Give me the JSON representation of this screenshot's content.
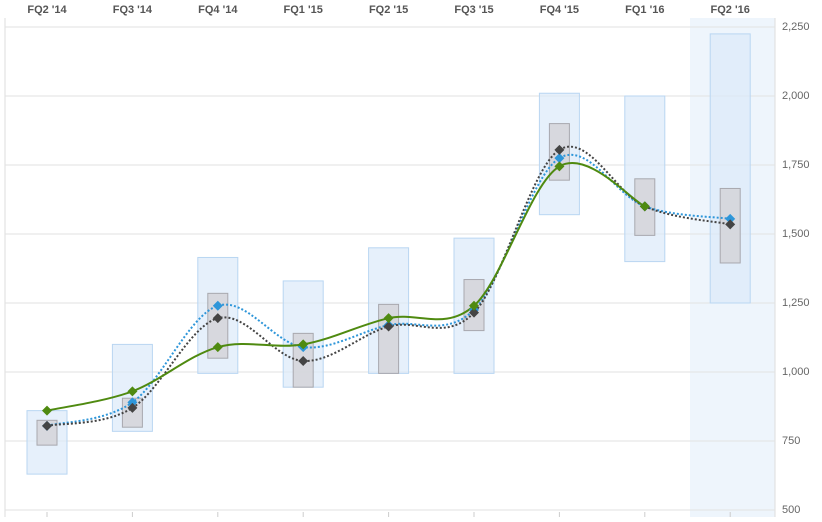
{
  "chart_data": {
    "type": "estimate-range",
    "categories": [
      "FQ2 '14",
      "FQ3 '14",
      "FQ4 '14",
      "FQ1 '15",
      "FQ2 '15",
      "FQ3 '15",
      "FQ4 '15",
      "FQ1 '16",
      "FQ2 '16"
    ],
    "range_low": [
      630,
      785,
      995,
      945,
      995,
      995,
      1570,
      1400,
      1250
    ],
    "range_high": [
      860,
      1100,
      1415,
      1330,
      1450,
      1485,
      2010,
      2000,
      2225
    ],
    "inner_low": [
      735,
      800,
      1050,
      945,
      995,
      1150,
      1695,
      1495,
      1395
    ],
    "inner_high": [
      825,
      905,
      1285,
      1140,
      1245,
      1335,
      1900,
      1700,
      1665
    ],
    "series": [
      {
        "color": "#2e96d9",
        "style": "dotted",
        "values": [
          805,
          890,
          1240,
          1090,
          1170,
          1225,
          1775,
          1600,
          1555
        ]
      },
      {
        "color": "#444444",
        "style": "dotted",
        "values": [
          805,
          870,
          1195,
          1040,
          1165,
          1215,
          1805,
          1600,
          1535
        ]
      },
      {
        "color": "#4f8a10",
        "style": "solid",
        "values": [
          860,
          930,
          1090,
          1100,
          1195,
          1240,
          1745,
          1600,
          null
        ]
      }
    ],
    "ylim": [
      500,
      2250
    ],
    "yticks": [
      500,
      750,
      {
        "value": 1000,
        "label": "1,000"
      },
      {
        "value": 1250,
        "label": "1,250"
      },
      {
        "value": 1500,
        "label": "1,500"
      },
      {
        "value": 1750,
        "label": "1,750"
      },
      {
        "value": 2000,
        "label": "2,000"
      },
      {
        "value": 2250,
        "label": "2,250"
      }
    ],
    "grid": true
  }
}
